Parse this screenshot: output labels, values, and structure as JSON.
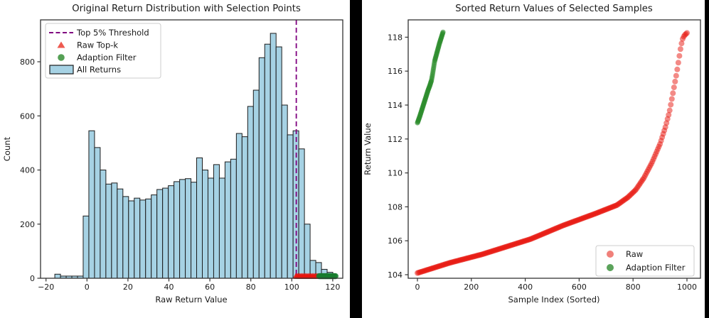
{
  "figure": {
    "background": "#000000",
    "panel_color": "#ffffff"
  },
  "left_chart": {
    "title": "Original Return Distribution with Selection Points",
    "xlabel": "Raw Return Value",
    "ylabel": "Count",
    "x_tick_labels": [
      "−20",
      "0",
      "20",
      "40",
      "60",
      "80",
      "100",
      "120"
    ],
    "x_tick_values": [
      -20,
      0,
      20,
      40,
      60,
      80,
      100,
      120
    ],
    "y_tick_labels": [
      "0",
      "200",
      "400",
      "600",
      "800"
    ],
    "y_tick_values": [
      0,
      200,
      400,
      600,
      800
    ],
    "legend": [
      {
        "label": "Top 5% Threshold",
        "type": "dashed-line",
        "color": "#800080"
      },
      {
        "label": "Raw Top-k",
        "type": "triangle",
        "color": "#ee5a50"
      },
      {
        "label": "Adaption Filter",
        "type": "circle",
        "color": "#55a055"
      },
      {
        "label": "All Returns",
        "type": "patch",
        "color": "#a6d2e4"
      }
    ]
  },
  "right_chart": {
    "title": "Sorted Return Values of Selected Samples",
    "xlabel": "Sample Index (Sorted)",
    "ylabel": "Return Value",
    "x_tick_labels": [
      "0",
      "200",
      "400",
      "600",
      "800",
      "1000"
    ],
    "x_tick_values": [
      0,
      200,
      400,
      600,
      800,
      1000
    ],
    "y_tick_labels": [
      "104",
      "106",
      "108",
      "110",
      "112",
      "114",
      "116",
      "118"
    ],
    "y_tick_values": [
      104,
      106,
      108,
      110,
      112,
      114,
      116,
      118
    ],
    "legend": [
      {
        "label": "Raw",
        "type": "circle",
        "color": "#f0807a"
      },
      {
        "label": "Adaption Filter",
        "type": "circle",
        "color": "#5ba35b"
      }
    ]
  },
  "colors": {
    "bar_fill": "#a6d2e4",
    "bar_edge": "#1c1c1c",
    "threshold": "#800080",
    "raw_marker": "#e8150e",
    "adaption_marker": "#177c2e",
    "scatter_red": "#e8150e",
    "scatter_green": "#2c8c2c",
    "spine": "#333333",
    "legend_border": "#cccccc"
  },
  "chart_data": [
    {
      "type": "bar",
      "subtype": "histogram",
      "title": "Original Return Distribution with Selection Points",
      "xlabel": "Raw Return Value",
      "ylabel": "Count",
      "xlim": [
        -22.5,
        125
      ],
      "ylim": [
        0,
        955
      ],
      "bin_start": -15.7,
      "bin_width": 2.77,
      "counts": [
        15,
        8,
        8,
        8,
        8,
        230,
        545,
        483,
        400,
        348,
        352,
        330,
        302,
        286,
        296,
        289,
        293,
        308,
        328,
        333,
        342,
        357,
        365,
        368,
        355,
        445,
        400,
        370,
        420,
        370,
        430,
        440,
        535,
        523,
        635,
        695,
        815,
        865,
        905,
        855,
        640,
        530,
        545,
        478,
        200,
        66,
        58,
        33,
        22
      ],
      "threshold_x": 102.2,
      "raw_topk_marker_x_range": [
        101.9,
        112.7
      ],
      "adaption_marker_x_range": [
        112.7,
        122.0
      ],
      "legend_position": "upper left",
      "grid": false
    },
    {
      "type": "scatter",
      "title": "Sorted Return Values of Selected Samples",
      "xlabel": "Sample Index (Sorted)",
      "ylabel": "Return Value",
      "xlim": [
        -34,
        1050
      ],
      "ylim": [
        103.7,
        119.1
      ],
      "series": [
        {
          "name": "Raw",
          "n_points": 1000,
          "shape_control_points": [
            [
              0,
              104.1
            ],
            [
              60,
              104.4
            ],
            [
              120,
              104.7
            ],
            [
              180,
              104.95
            ],
            [
              240,
              105.2
            ],
            [
              300,
              105.5
            ],
            [
              360,
              105.8
            ],
            [
              420,
              106.1
            ],
            [
              480,
              106.5
            ],
            [
              540,
              106.9
            ],
            [
              600,
              107.25
            ],
            [
              660,
              107.6
            ],
            [
              700,
              107.85
            ],
            [
              740,
              108.1
            ],
            [
              780,
              108.55
            ],
            [
              810,
              109.0
            ],
            [
              840,
              109.7
            ],
            [
              870,
              110.6
            ],
            [
              900,
              111.7
            ],
            [
              920,
              112.7
            ],
            [
              935,
              113.6
            ],
            [
              948,
              114.7
            ],
            [
              955,
              115.3
            ],
            [
              962,
              115.9
            ],
            [
              968,
              116.5
            ],
            [
              973,
              117.0
            ],
            [
              978,
              117.5
            ],
            [
              984,
              117.9
            ],
            [
              990,
              118.1
            ],
            [
              1000,
              118.25
            ]
          ]
        },
        {
          "name": "Adaption Filter",
          "n_points": 96,
          "shape_control_points": [
            [
              0,
              112.95
            ],
            [
              8,
              113.3
            ],
            [
              16,
              113.7
            ],
            [
              24,
              114.1
            ],
            [
              32,
              114.5
            ],
            [
              40,
              114.9
            ],
            [
              46,
              115.15
            ],
            [
              52,
              115.45
            ],
            [
              56,
              115.8
            ],
            [
              60,
              116.2
            ],
            [
              64,
              116.6
            ],
            [
              70,
              116.95
            ],
            [
              76,
              117.3
            ],
            [
              82,
              117.65
            ],
            [
              88,
              117.95
            ],
            [
              95,
              118.3
            ]
          ]
        }
      ],
      "legend_position": "lower right",
      "grid": false
    }
  ]
}
